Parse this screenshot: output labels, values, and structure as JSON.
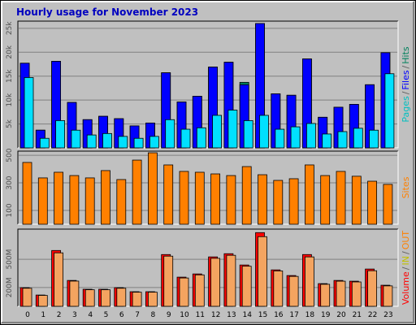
{
  "title": "Hourly usage for November 2023",
  "chart_data": [
    {
      "type": "bar",
      "series": [
        {
          "name": "Hits",
          "color": "#00805c",
          "values": [
            17700,
            3700,
            18100,
            9500,
            5900,
            6600,
            6100,
            4600,
            5200,
            15700,
            9600,
            10800,
            16900,
            17900,
            13700,
            26000,
            11300,
            11000,
            18600,
            6400,
            8500,
            9100,
            13200,
            19900
          ]
        },
        {
          "name": "Files",
          "color": "#0000ff",
          "values": [
            17700,
            3700,
            18100,
            9500,
            5900,
            6600,
            6100,
            4600,
            5200,
            15700,
            9600,
            10800,
            16900,
            17900,
            13200,
            26000,
            11300,
            11000,
            18600,
            6400,
            8500,
            9100,
            13200,
            19900
          ]
        },
        {
          "name": "Pages",
          "color": "#00e0ff",
          "values": [
            14700,
            2000,
            5700,
            3700,
            2700,
            3000,
            2400,
            2000,
            2400,
            5900,
            3900,
            4200,
            6800,
            7900,
            5700,
            6800,
            3900,
            4400,
            5100,
            2900,
            3400,
            4100,
            3700,
            15500
          ]
        }
      ],
      "ylim": [
        0,
        26500
      ],
      "yticks": [
        {
          "value": 5000,
          "label": "5k"
        },
        {
          "value": 10000,
          "label": "10k"
        },
        {
          "value": 15000,
          "label": "15k"
        },
        {
          "value": 20000,
          "label": "20k"
        },
        {
          "value": 25000,
          "label": "25k"
        }
      ],
      "grid": true,
      "right_label": [
        {
          "text": "Pages",
          "color": "#00c0c0"
        },
        {
          "text": "/",
          "color": "#606060"
        },
        {
          "text": "Files",
          "color": "#0000ff"
        },
        {
          "text": "/",
          "color": "#606060"
        },
        {
          "text": "Hits",
          "color": "#00805c"
        }
      ]
    },
    {
      "type": "bar",
      "series": [
        {
          "name": "Sites",
          "color": "#ff8000",
          "values": [
            448,
            336,
            377,
            353,
            336,
            389,
            324,
            465,
            518,
            430,
            383,
            377,
            365,
            353,
            418,
            359,
            318,
            330,
            430,
            353,
            383,
            348,
            312,
            289
          ]
        }
      ],
      "ylim": [
        0,
        530
      ],
      "yticks": [
        100,
        300,
        500
      ],
      "grid": true,
      "right_label": [
        {
          "text": "Sites",
          "color": "#ff8000"
        }
      ]
    },
    {
      "type": "bar",
      "categories": [
        "0",
        "1",
        "2",
        "3",
        "4",
        "5",
        "6",
        "7",
        "8",
        "9",
        "10",
        "11",
        "12",
        "13",
        "14",
        "15",
        "16",
        "17",
        "18",
        "19",
        "20",
        "21",
        "22",
        "23"
      ],
      "series": [
        {
          "name": "Volume",
          "color": "#ff0000",
          "values": [
            198,
            120,
            593,
            275,
            181,
            181,
            198,
            155,
            155,
            550,
            310,
            344,
            525,
            559,
            439,
            783,
            387,
            327,
            550,
            241,
            275,
            267,
            396,
            224
          ]
        },
        {
          "name": "OUT",
          "color": "#f4a460",
          "values": [
            192,
            116,
            568,
            268,
            176,
            176,
            192,
            150,
            150,
            533,
            301,
            334,
            510,
            542,
            426,
            740,
            376,
            318,
            525,
            234,
            267,
            259,
            378,
            217
          ]
        }
      ],
      "ylim": [
        0,
        820
      ],
      "yticks": [
        {
          "value": 200,
          "label": "200M"
        },
        {
          "value": 500,
          "label": "500M"
        }
      ],
      "grid": true,
      "right_label": [
        {
          "text": "Volume",
          "color": "#ff0000"
        },
        {
          "text": "/",
          "color": "#606060"
        },
        {
          "text": "IN",
          "color": "#c0c000"
        },
        {
          "text": "/",
          "color": "#606060"
        },
        {
          "text": "OUT",
          "color": "#ff8000"
        }
      ]
    }
  ]
}
